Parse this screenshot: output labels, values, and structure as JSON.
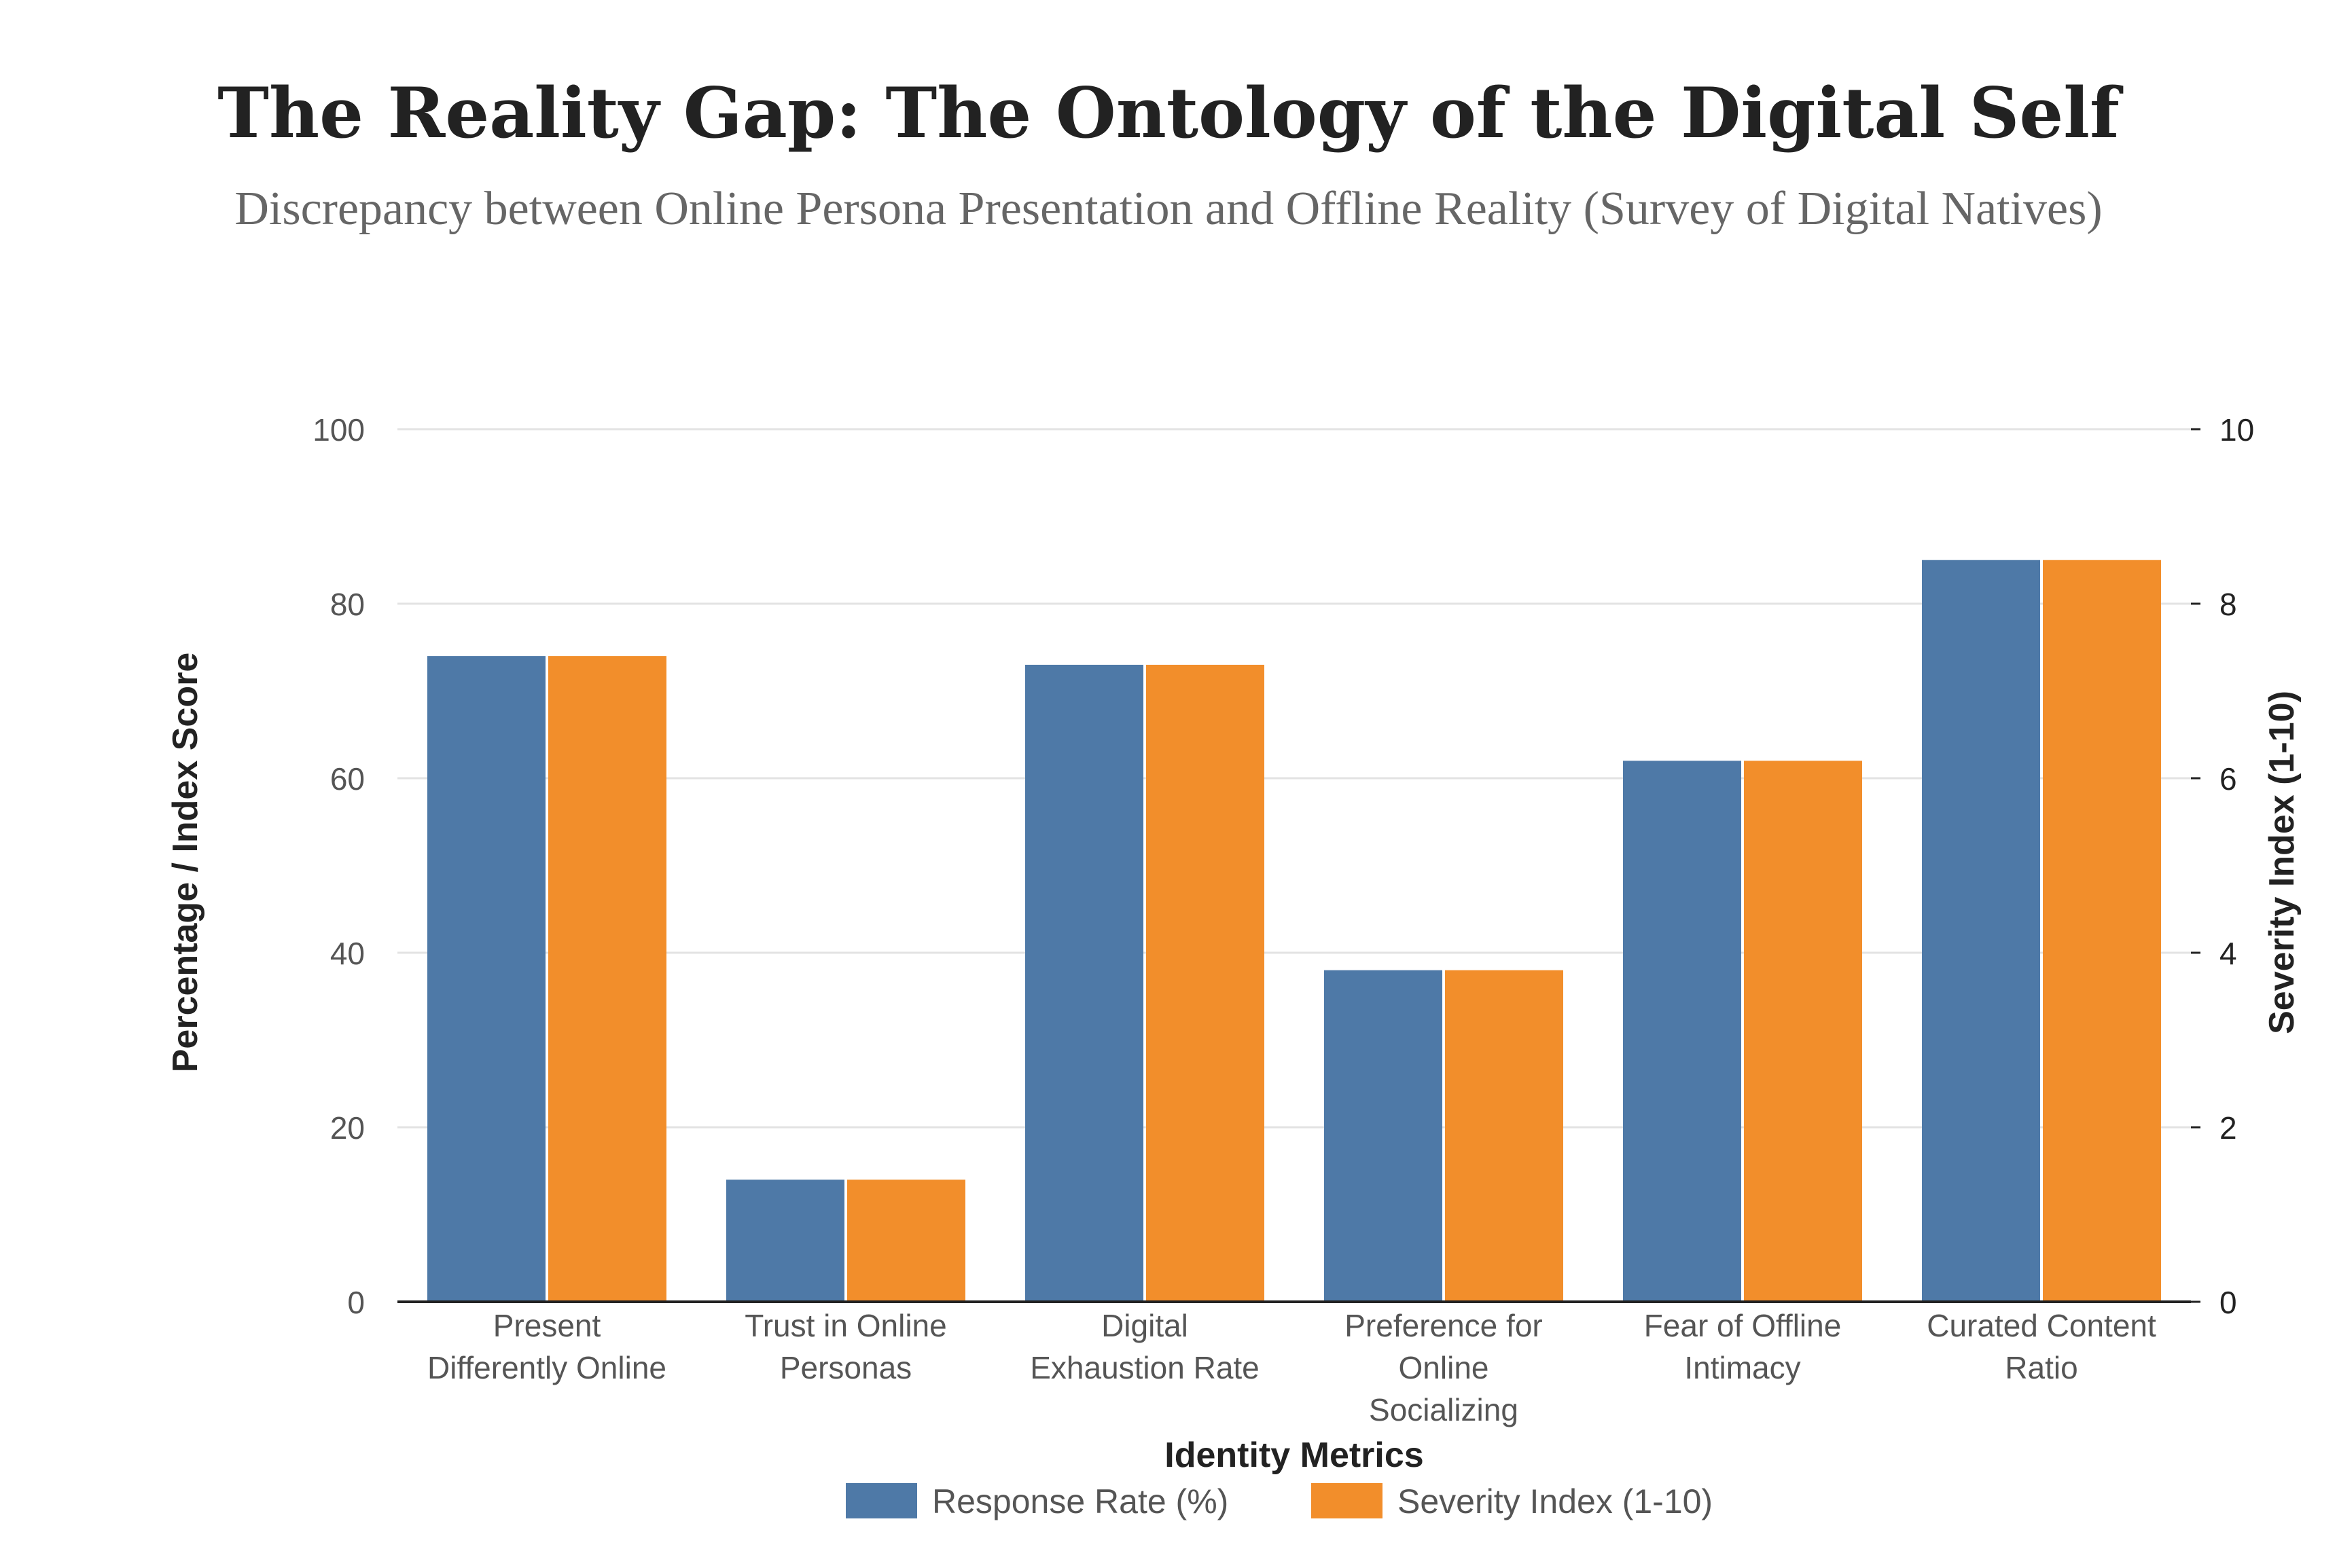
{
  "chart_data": {
    "type": "bar",
    "title": "The Reality Gap: The Ontology of the Digital Self",
    "subtitle": "Discrepancy between Online Persona Presentation and Offline Reality (Survey of Digital Natives)",
    "xlabel": "Identity Metrics",
    "ylabel": "Percentage / Index Score",
    "y2label": "Severity Index (1-10)",
    "ylim": [
      0,
      100
    ],
    "y2lim": [
      0,
      10
    ],
    "yticks": [
      "0",
      "20",
      "40",
      "60",
      "80",
      "100"
    ],
    "y2ticks": [
      "0",
      "2",
      "4",
      "6",
      "8",
      "10"
    ],
    "grid": true,
    "legend_position": "bottom-center",
    "categories": [
      [
        "Present",
        "Differently Online"
      ],
      [
        "Trust in Online",
        "Personas"
      ],
      [
        "Digital",
        "Exhaustion Rate"
      ],
      [
        "Preference for",
        "Online",
        "Socializing"
      ],
      [
        "Fear of Offline",
        "Intimacy"
      ],
      [
        "Curated Content",
        "Ratio"
      ]
    ],
    "series": [
      {
        "name": "Response Rate (%)",
        "axis": "left",
        "color": "#4e79a7",
        "values": [
          74,
          14,
          73,
          38,
          62,
          85
        ]
      },
      {
        "name": "Severity Index (1-10)",
        "axis": "right",
        "color": "#f28e2b",
        "values": [
          7.4,
          1.4,
          7.3,
          3.8,
          6.2,
          8.5
        ]
      }
    ]
  }
}
